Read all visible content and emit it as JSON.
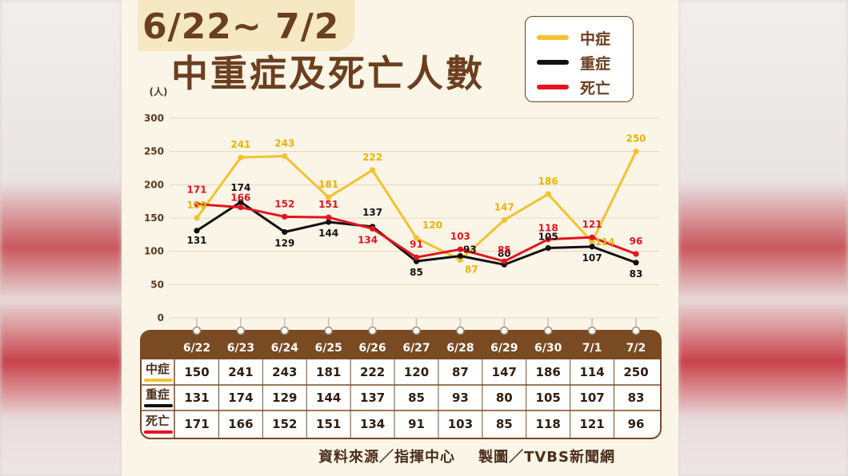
{
  "header": {
    "date_range": "6/22~ 7/2",
    "title": "中重症及死亡人數"
  },
  "legend": [
    {
      "label": "中症",
      "color": "#f2c230"
    },
    {
      "label": "重症",
      "color": "#111111"
    },
    {
      "label": "死亡",
      "color": "#e3141e"
    }
  ],
  "footer": "資料來源／指揮中心    製圖／TVBS新聞網",
  "chart_data": {
    "type": "line",
    "y_unit": "(人)",
    "ylim": [
      0,
      300
    ],
    "y_ticks": [
      "0",
      "50",
      "100",
      "150",
      "200",
      "250",
      "300"
    ],
    "categories": [
      "6/22",
      "6/23",
      "6/24",
      "6/25",
      "6/26",
      "6/27",
      "6/28",
      "6/29",
      "6/30",
      "7/1",
      "7/2"
    ],
    "series": [
      {
        "name": "中症",
        "color": "#f2c230",
        "label_color": "#e8b400",
        "values": [
          150,
          241,
          243,
          181,
          222,
          120,
          87,
          147,
          186,
          114,
          250
        ]
      },
      {
        "name": "重症",
        "color": "#111111",
        "label_color": "#111111",
        "values": [
          131,
          174,
          129,
          144,
          137,
          85,
          93,
          80,
          105,
          107,
          83
        ]
      },
      {
        "name": "死亡",
        "color": "#e3141e",
        "label_color": "#e3141e",
        "values": [
          171,
          166,
          152,
          151,
          134,
          91,
          103,
          85,
          118,
          121,
          96
        ]
      }
    ]
  }
}
